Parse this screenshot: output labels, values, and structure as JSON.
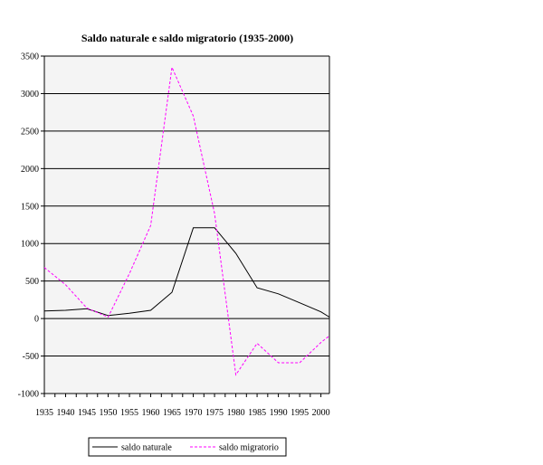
{
  "chart_data": {
    "type": "line",
    "title": "Saldo naturale e saldo migratorio (1935-2000)",
    "xlabel": "",
    "ylabel": "",
    "xlim": [
      1935,
      2002
    ],
    "ylim": [
      -1000,
      3500
    ],
    "y_ticks": [
      3500,
      3000,
      2500,
      2000,
      1500,
      1000,
      500,
      0,
      -500,
      -1000
    ],
    "x_ticks": [
      1935,
      1940,
      1945,
      1950,
      1955,
      1960,
      1965,
      1970,
      1975,
      1980,
      1985,
      1990,
      1995,
      2000
    ],
    "grid": "horizontal",
    "legend_position": "bottom",
    "series": [
      {
        "name": "saldo naturale",
        "color": "#000000",
        "style": "solid",
        "x": [
          1935,
          1940,
          1945,
          1950,
          1955,
          1960,
          1965,
          1970,
          1975,
          1980,
          1985,
          1990,
          1995,
          2000,
          2002
        ],
        "values": [
          100,
          110,
          130,
          40,
          70,
          110,
          350,
          1210,
          1210,
          870,
          410,
          330,
          210,
          90,
          20
        ]
      },
      {
        "name": "saldo migratorio",
        "color": "#ff00ff",
        "style": "dashed",
        "x": [
          1935,
          1940,
          1945,
          1950,
          1955,
          1960,
          1965,
          1970,
          1975,
          1980,
          1985,
          1990,
          1995,
          2000,
          2002
        ],
        "values": [
          680,
          450,
          140,
          20,
          600,
          1240,
          3350,
          2700,
          1400,
          -750,
          -330,
          -590,
          -590,
          -320,
          -230
        ]
      }
    ]
  }
}
